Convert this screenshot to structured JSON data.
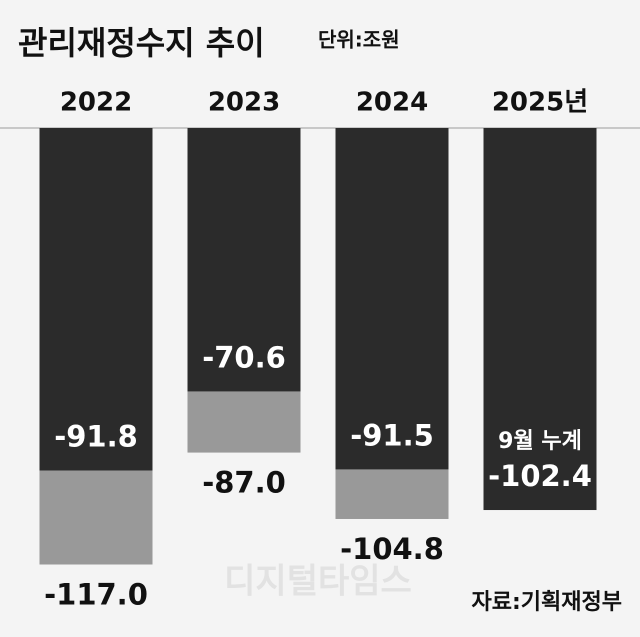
{
  "chart_data": {
    "type": "bar",
    "title": "관리재정수지 추이",
    "subtitle": "단위:조원",
    "categories": [
      "2022",
      "2023",
      "2024",
      "2025년"
    ],
    "series": [
      {
        "color": "#999999",
        "values": [
          -117.0,
          -87.0,
          -104.8,
          null
        ],
        "value_labels": [
          "-117.0",
          "-87.0",
          "-104.8",
          null
        ]
      },
      {
        "color": "#2b2b2b",
        "values": [
          -91.8,
          -70.6,
          -91.5,
          -102.4
        ],
        "value_labels": [
          "-91.8",
          "-70.6",
          "-91.5",
          "-102.4"
        ]
      }
    ],
    "annotations": [
      "9월 누계"
    ],
    "ylim": [
      -130,
      0
    ],
    "watermark": "디지털타임스",
    "source": "자료:기획재정부"
  }
}
